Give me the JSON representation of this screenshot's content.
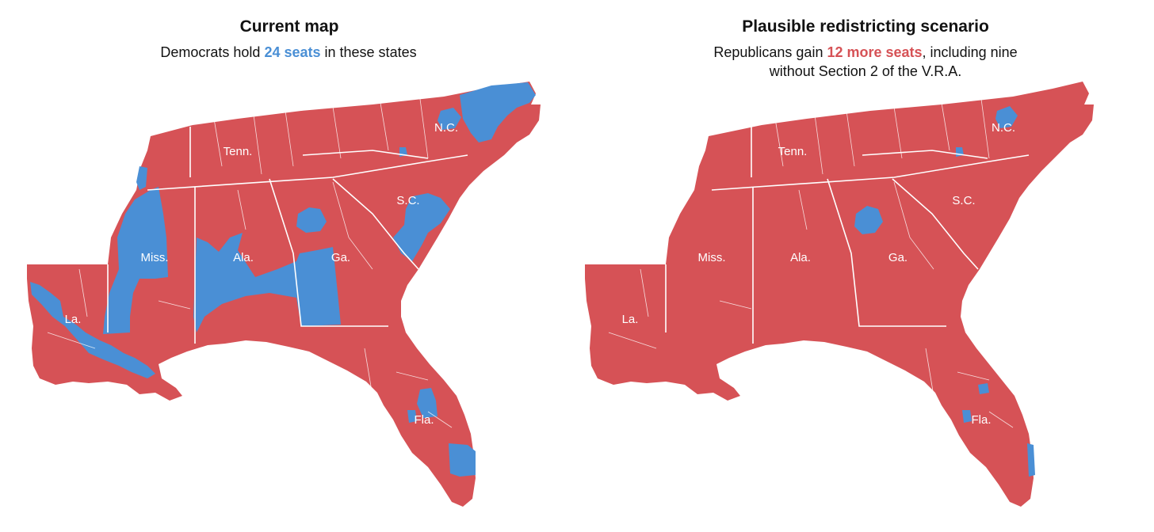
{
  "colors": {
    "republican": "#d65256",
    "democrat": "#4a8fd5",
    "border": "#ffffff"
  },
  "left": {
    "title": "Current map",
    "subtitle_pre": "Democrats hold ",
    "subtitle_highlight": "24 seats",
    "subtitle_post": " in these states",
    "highlight_color": "#4a8fd5"
  },
  "right": {
    "title": "Plausible redistricting scenario",
    "subtitle_pre": "Republicans gain ",
    "subtitle_highlight": "12 more seats",
    "subtitle_post": ", including nine",
    "subtitle_line2": "without Section 2 of the V.R.A.",
    "highlight_color": "#d65256"
  },
  "state_labels": {
    "tenn": "Tenn.",
    "nc": "N.C.",
    "sc": "S.C.",
    "miss": "Miss.",
    "ala": "Ala.",
    "ga": "Ga.",
    "la": "La.",
    "fla": "Fla."
  }
}
